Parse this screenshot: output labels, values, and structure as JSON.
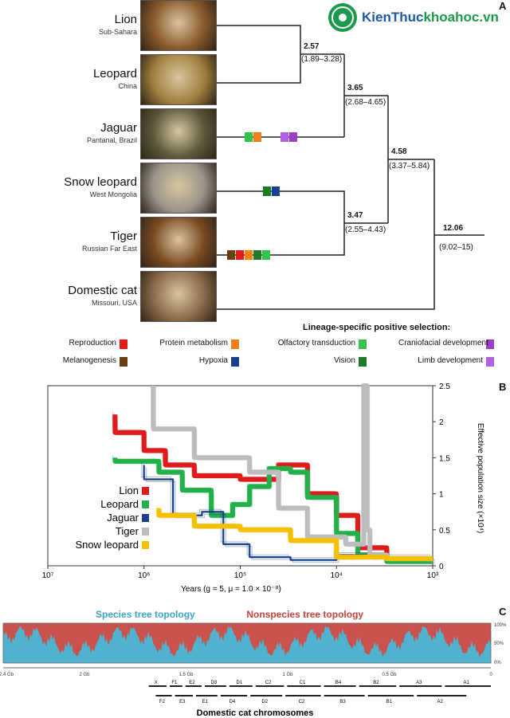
{
  "site": {
    "brand": "KienThuc",
    "brand_tld": "khoahoc.vn"
  },
  "panel_letters": {
    "a": "A",
    "b": "B",
    "c": "C"
  },
  "species": [
    {
      "name": "Lion",
      "location": "Sub-Sahara",
      "photo_color": "#8a5a2b"
    },
    {
      "name": "Leopard",
      "location": "China",
      "photo_color": "#a3803f"
    },
    {
      "name": "Jaguar",
      "location": "Pantanal, Brazil",
      "photo_color": "#5d5a3c"
    },
    {
      "name": "Snow leopard",
      "location": "West Mongolia",
      "photo_color": "#9a958a"
    },
    {
      "name": "Tiger",
      "location": "Russian Far East",
      "photo_color": "#7a4a22"
    },
    {
      "name": "Domestic cat",
      "location": "Missouri, USA",
      "photo_color": "#8c6a4a"
    }
  ],
  "nodes": [
    {
      "age": "2.57",
      "ci": "(1.89–3.28)"
    },
    {
      "age": "3.65",
      "ci": "(2.68–4.65)"
    },
    {
      "age": "4.58",
      "ci": "(3.37–5.84)"
    },
    {
      "age": "3.47",
      "ci": "(2.55–4.43)"
    },
    {
      "age": "12.06",
      "ci": "(9.02–15)"
    }
  ],
  "selection": {
    "title": "Lineage-specific positive selection:",
    "categories": [
      {
        "label": "Craniofacial development",
        "color": "#9b3fc4"
      },
      {
        "label": "Olfactory transduction",
        "color": "#33c24a"
      },
      {
        "label": "Protein metabolism",
        "color": "#f07f1a"
      },
      {
        "label": "Reproduction",
        "color": "#e01b1b"
      },
      {
        "label": "Limb development",
        "color": "#b060e0"
      },
      {
        "label": "Vision",
        "color": "#1f7a2a"
      },
      {
        "label": "Hypoxia",
        "color": "#1a3f8c"
      },
      {
        "label": "Melanogenesis",
        "color": "#6b3d12"
      }
    ]
  },
  "chart_data": {
    "type": "line",
    "xlabel": "Years (g = 5, μ = 1.0 × 10⁻⁸)",
    "ylabel": "Effective population size (×10⁴)",
    "x_scale": "log",
    "xlim": [
      1000,
      10000000
    ],
    "ylim": [
      0,
      2.5
    ],
    "xticks": [
      "10³",
      "10⁴",
      "10⁵",
      "10⁶",
      "10⁷"
    ],
    "yticks": [
      "0",
      "0.5",
      "1",
      "1.5",
      "2",
      "2.5"
    ],
    "series": [
      {
        "name": "Lion",
        "color": "#e01b1b",
        "points": [
          [
            1000,
            0.08
          ],
          [
            3000,
            0.25
          ],
          [
            6000,
            0.7
          ],
          [
            10000,
            1.0
          ],
          [
            20000,
            1.4
          ],
          [
            40000,
            1.2
          ],
          [
            100000,
            1.25
          ],
          [
            300000,
            1.4
          ],
          [
            600000,
            1.6
          ],
          [
            1000000,
            1.85
          ],
          [
            2000000,
            2.1
          ]
        ]
      },
      {
        "name": "Leopard",
        "color": "#22b04a",
        "points": [
          [
            1000,
            0.06
          ],
          [
            3000,
            0.15
          ],
          [
            6000,
            0.45
          ],
          [
            10000,
            0.95
          ],
          [
            20000,
            1.3
          ],
          [
            30000,
            1.35
          ],
          [
            50000,
            1.1
          ],
          [
            80000,
            0.85
          ],
          [
            120000,
            0.7
          ],
          [
            200000,
            1.05
          ],
          [
            400000,
            1.3
          ],
          [
            700000,
            1.45
          ],
          [
            1000000,
            1.45
          ],
          [
            2000000,
            1.5
          ]
        ]
      },
      {
        "name": "Jaguar",
        "color": "#1a3f8c",
        "points": [
          [
            1000,
            0.12
          ],
          [
            3000,
            0.15
          ],
          [
            10000,
            0.08
          ],
          [
            30000,
            0.12
          ],
          [
            80000,
            0.3
          ],
          [
            150000,
            0.75
          ],
          [
            250000,
            0.7
          ],
          [
            500000,
            1.2
          ],
          [
            1000000,
            1.4
          ]
        ]
      },
      {
        "name": "Tiger",
        "color": "#bdbdbd",
        "points": [
          [
            1000,
            0.1
          ],
          [
            3000,
            0.15
          ],
          [
            4500,
            0.5
          ],
          [
            4800,
            2.5
          ],
          [
            5200,
            0.3
          ],
          [
            8000,
            0.4
          ],
          [
            20000,
            0.8
          ],
          [
            40000,
            1.3
          ],
          [
            80000,
            1.5
          ],
          [
            150000,
            1.5
          ],
          [
            300000,
            1.9
          ],
          [
            800000,
            2.5
          ]
        ]
      },
      {
        "name": "Snow leopard",
        "color": "#f5c000",
        "points": [
          [
            1000,
            0.1
          ],
          [
            3000,
            0.12
          ],
          [
            10000,
            0.35
          ],
          [
            30000,
            0.5
          ],
          [
            100000,
            0.55
          ],
          [
            300000,
            0.7
          ],
          [
            700000,
            0.8
          ]
        ]
      }
    ]
  },
  "panel_c": {
    "nonspecies_label": "Nonspecies tree topology",
    "species_label": "Species tree topology",
    "y_ticks": [
      "100%",
      "50%",
      "0%"
    ],
    "x_ticks": [
      "0",
      "0.5 Gb",
      "1 Gb",
      "1.5 Gb",
      "2 Gb",
      "2.4 Gb"
    ],
    "chrom_title": "Domestic cat chromosomes",
    "chrom_top": [
      "A1",
      "A3",
      "B2",
      "B4",
      "C1",
      "C2",
      "D1",
      "D3",
      "E2",
      "F1",
      "X"
    ],
    "chrom_bottom": [
      "A2",
      "B1",
      "B3",
      "C2",
      "D2",
      "D4",
      "E1",
      "E3",
      "F2"
    ]
  }
}
